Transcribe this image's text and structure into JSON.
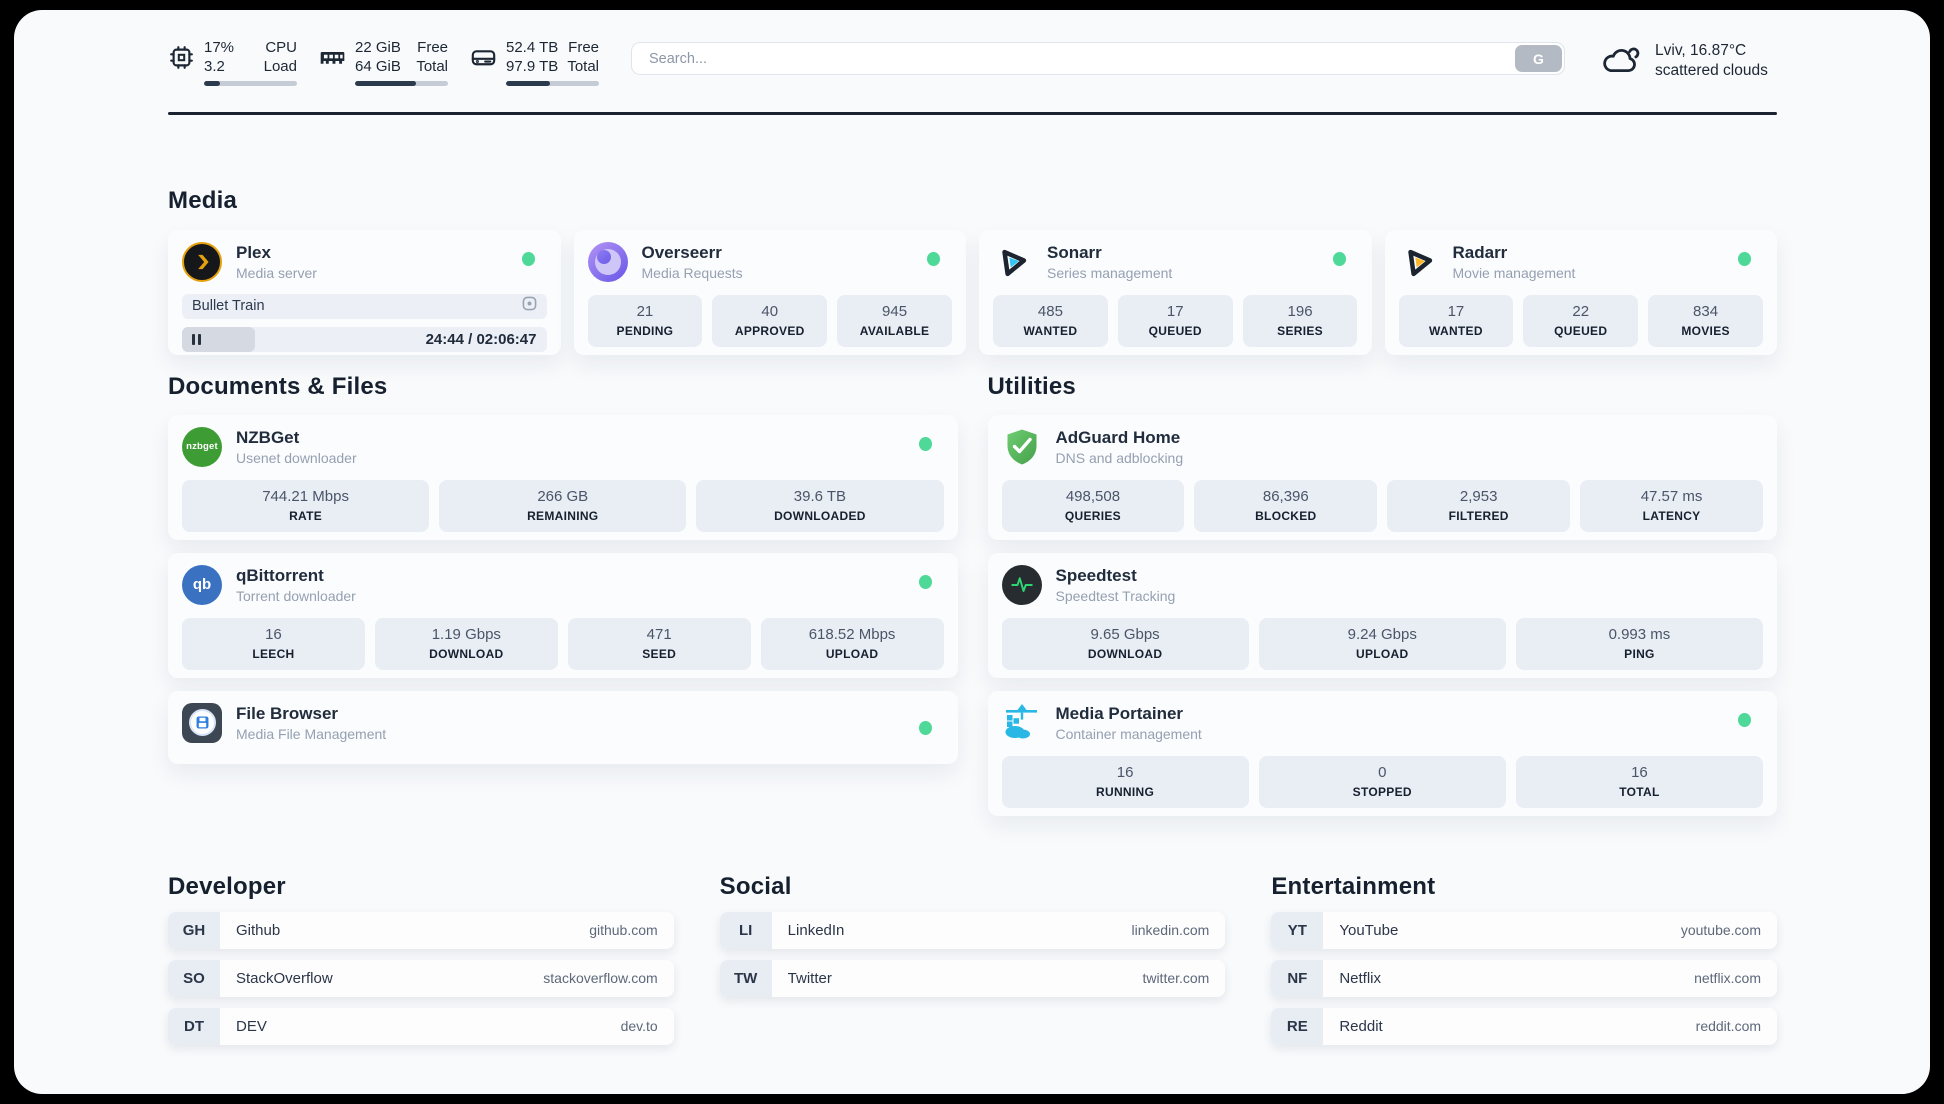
{
  "header": {
    "system": [
      {
        "name": "cpu",
        "value1": "17%",
        "label1": "CPU",
        "value2": "3.2",
        "label2": "Load",
        "progress": 17
      },
      {
        "name": "memory",
        "value1": "22 GiB",
        "label1": "Free",
        "value2": "64 GiB",
        "label2": "Total",
        "progress": 66
      },
      {
        "name": "disk",
        "value1": "52.4 TB",
        "label1": "Free",
        "value2": "97.9 TB",
        "label2": "Total",
        "progress": 47
      }
    ],
    "search": {
      "placeholder": "Search...",
      "button_label": "G"
    },
    "weather": {
      "location_temp": "Lviv, 16.87°C",
      "condition": "scattered clouds"
    }
  },
  "sections": {
    "media": "Media",
    "documents": "Documents & Files",
    "utilities": "Utilities",
    "developer": "Developer",
    "social": "Social",
    "entertainment": "Entertainment"
  },
  "apps": {
    "plex": {
      "name": "Plex",
      "description": "Media server",
      "online": true,
      "now_playing": {
        "title": "Bullet Train",
        "time": "24:44 / 02:06:47",
        "progress": 20
      }
    },
    "overseerr": {
      "name": "Overseerr",
      "description": "Media Requests",
      "online": true,
      "stats": [
        {
          "value": "21",
          "label": "PENDING"
        },
        {
          "value": "40",
          "label": "APPROVED"
        },
        {
          "value": "945",
          "label": "AVAILABLE"
        }
      ]
    },
    "sonarr": {
      "name": "Sonarr",
      "description": "Series management",
      "online": true,
      "stats": [
        {
          "value": "485",
          "label": "WANTED"
        },
        {
          "value": "17",
          "label": "QUEUED"
        },
        {
          "value": "196",
          "label": "SERIES"
        }
      ]
    },
    "radarr": {
      "name": "Radarr",
      "description": "Movie management",
      "online": true,
      "stats": [
        {
          "value": "17",
          "label": "WANTED"
        },
        {
          "value": "22",
          "label": "QUEUED"
        },
        {
          "value": "834",
          "label": "MOVIES"
        }
      ]
    },
    "nzbget": {
      "name": "NZBGet",
      "description": "Usenet downloader",
      "online": true,
      "icon_text": "nzbget",
      "stats": [
        {
          "value": "744.21 Mbps",
          "label": "RATE"
        },
        {
          "value": "266 GB",
          "label": "REMAINING"
        },
        {
          "value": "39.6 TB",
          "label": "DOWNLOADED"
        }
      ]
    },
    "qbittorrent": {
      "name": "qBittorrent",
      "description": "Torrent downloader",
      "online": true,
      "icon_text": "qb",
      "stats": [
        {
          "value": "16",
          "label": "LEECH"
        },
        {
          "value": "1.19 Gbps",
          "label": "DOWNLOAD"
        },
        {
          "value": "471",
          "label": "SEED"
        },
        {
          "value": "618.52 Mbps",
          "label": "UPLOAD"
        }
      ]
    },
    "filebrowser": {
      "name": "File Browser",
      "description": "Media File Management",
      "online": true
    },
    "adguard": {
      "name": "AdGuard Home",
      "description": "DNS and adblocking",
      "online": false,
      "stats": [
        {
          "value": "498,508",
          "label": "QUERIES"
        },
        {
          "value": "86,396",
          "label": "BLOCKED"
        },
        {
          "value": "2,953",
          "label": "FILTERED"
        },
        {
          "value": "47.57 ms",
          "label": "LATENCY"
        }
      ]
    },
    "speedtest": {
      "name": "Speedtest",
      "description": "Speedtest Tracking",
      "online": false,
      "stats": [
        {
          "value": "9.65 Gbps",
          "label": "DOWNLOAD"
        },
        {
          "value": "9.24 Gbps",
          "label": "UPLOAD"
        },
        {
          "value": "0.993 ms",
          "label": "PING"
        }
      ]
    },
    "portainer": {
      "name": "Media Portainer",
      "description": "Container management",
      "online": true,
      "stats": [
        {
          "value": "16",
          "label": "RUNNING"
        },
        {
          "value": "0",
          "label": "STOPPED"
        },
        {
          "value": "16",
          "label": "TOTAL"
        }
      ]
    }
  },
  "links": {
    "developer": [
      {
        "abbr": "GH",
        "name": "Github",
        "url": "github.com"
      },
      {
        "abbr": "SO",
        "name": "StackOverflow",
        "url": "stackoverflow.com"
      },
      {
        "abbr": "DT",
        "name": "DEV",
        "url": "dev.to"
      }
    ],
    "social": [
      {
        "abbr": "LI",
        "name": "LinkedIn",
        "url": "linkedin.com"
      },
      {
        "abbr": "TW",
        "name": "Twitter",
        "url": "twitter.com"
      }
    ],
    "entertainment": [
      {
        "abbr": "YT",
        "name": "YouTube",
        "url": "youtube.com"
      },
      {
        "abbr": "NF",
        "name": "Netflix",
        "url": "netflix.com"
      },
      {
        "abbr": "RE",
        "name": "Reddit",
        "url": "reddit.com"
      }
    ]
  },
  "colors": {
    "status_online": "#4fd998",
    "plex_amber": "#e5a00d",
    "sonarr_cyan": "#35c5f4",
    "radarr_amber": "#ffb829",
    "nzbget_green": "#3e9c35",
    "qbittorrent_blue": "#3a71c1",
    "adguard_green": "#57b85c",
    "speedtest_pulse": "#2dd673",
    "portainer_blue": "#29b8e5"
  }
}
